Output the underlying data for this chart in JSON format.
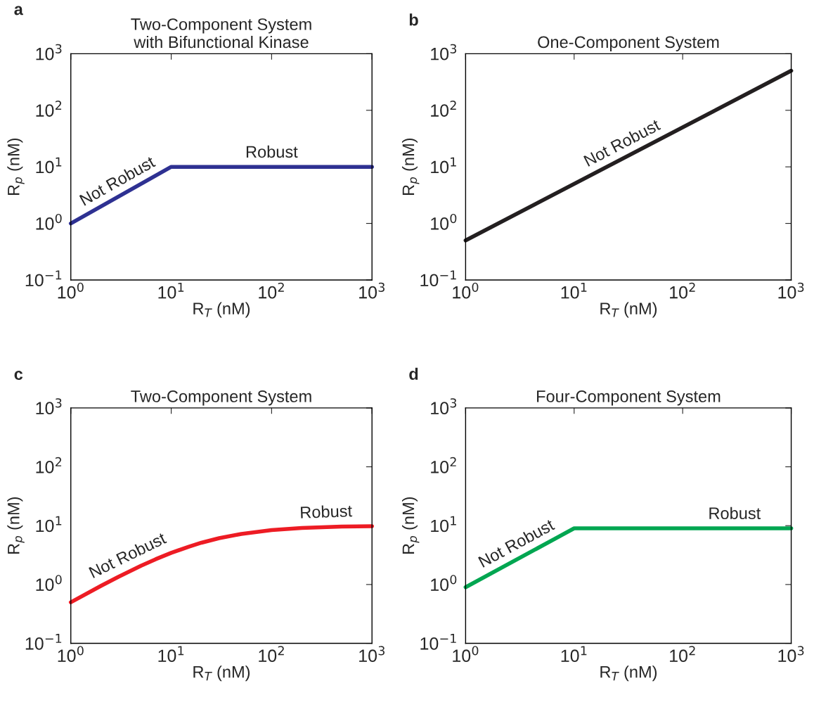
{
  "chart_data": [
    {
      "type": "line",
      "title": "Two-Component System\nwith Bifunctional Kinase",
      "xlabel": "R$_{T}$ (nM)",
      "ylabel": "R$_{p}$ (nM)",
      "log": "xy",
      "grid": false,
      "legend": false,
      "xlim": [
        1,
        1000
      ],
      "ylim": [
        0.1,
        1000
      ],
      "xticks": [
        {
          "value": 1,
          "label": "10$^{0}$"
        },
        {
          "value": 10,
          "label": "10$^{1}$"
        },
        {
          "value": 100,
          "label": "10$^{2}$"
        },
        {
          "value": 1000,
          "label": "10$^{3}$"
        }
      ],
      "yticks": [
        {
          "value": 0.1,
          "label": "10$^{−1}$"
        },
        {
          "value": 1,
          "label": "10$^{0}$"
        },
        {
          "value": 10,
          "label": "10$^{1}$"
        },
        {
          "value": 100,
          "label": "10$^{2}$"
        },
        {
          "value": 1000,
          "label": "10$^{3}$"
        }
      ],
      "series": [
        {
          "color": "#2e3192",
          "x": [
            1,
            10,
            1000
          ],
          "values": [
            1,
            10,
            10
          ]
        }
      ],
      "annotations": [
        "a",
        {
          "text": "Not Robust",
          "x": 3.2,
          "y": 3.2
        },
        {
          "text": "Robust",
          "x": 100,
          "y": 10
        }
      ]
    },
    {
      "type": "line",
      "title": "One-Component System",
      "xlabel": "R$_{T}$ (nM)",
      "ylabel": "R$_{p}$ (nM)",
      "log": "xy",
      "grid": false,
      "legend": false,
      "xlim": [
        1,
        1000
      ],
      "ylim": [
        0.1,
        1000
      ],
      "xticks": [
        {
          "value": 1,
          "label": "10$^{0}$"
        },
        {
          "value": 10,
          "label": "10$^{1}$"
        },
        {
          "value": 100,
          "label": "10$^{2}$"
        },
        {
          "value": 1000,
          "label": "10$^{3}$"
        }
      ],
      "yticks": [
        {
          "value": 0.1,
          "label": "10$^{−1}$"
        },
        {
          "value": 1,
          "label": "10$^{0}$"
        },
        {
          "value": 10,
          "label": "10$^{1}$"
        },
        {
          "value": 100,
          "label": "10$^{2}$"
        },
        {
          "value": 1000,
          "label": "10$^{3}$"
        }
      ],
      "series": [
        {
          "color": "#231f20",
          "x": [
            1,
            1000
          ],
          "values": [
            0.5,
            500
          ]
        }
      ],
      "annotations": [
        "b",
        {
          "text": "Not Robust",
          "x": 30,
          "y": 15
        }
      ]
    },
    {
      "type": "line",
      "title": "Two-Component System",
      "xlabel": "R$_{T}$ (nM)",
      "ylabel": "R$_{p}$ (nM)",
      "log": "xy",
      "grid": false,
      "legend": false,
      "xlim": [
        1,
        1000
      ],
      "ylim": [
        0.1,
        1000
      ],
      "xticks": [
        {
          "value": 1,
          "label": "10$^{0}$"
        },
        {
          "value": 10,
          "label": "10$^{1}$"
        },
        {
          "value": 100,
          "label": "10$^{2}$"
        },
        {
          "value": 1000,
          "label": "10$^{3}$"
        }
      ],
      "yticks": [
        {
          "value": 0.1,
          "label": "10$^{−1}$"
        },
        {
          "value": 1,
          "label": "10$^{0}$"
        },
        {
          "value": 10,
          "label": "10$^{1}$"
        },
        {
          "value": 100,
          "label": "10$^{2}$"
        },
        {
          "value": 1000,
          "label": "10$^{3}$"
        }
      ],
      "series": [
        {
          "color": "#ed1c24",
          "x": [
            1,
            2,
            3,
            5,
            7,
            10,
            15,
            20,
            30,
            50,
            100,
            200,
            500,
            1000
          ],
          "values": [
            0.5,
            0.95,
            1.36,
            2.08,
            2.69,
            3.45,
            4.4,
            5.13,
            6.12,
            7.25,
            8.4,
            9.13,
            9.63,
            9.81
          ]
        }
      ],
      "annotations": [
        "c",
        {
          "text": "Not Robust",
          "x": 4,
          "y": 1.8
        },
        {
          "text": "Robust",
          "x": 350,
          "y": 9.6
        }
      ]
    },
    {
      "type": "line",
      "title": "Four-Component System",
      "xlabel": "R$_{T}$ (nM)",
      "ylabel": "R$_{p}$ (nM)",
      "log": "xy",
      "grid": false,
      "legend": false,
      "xlim": [
        1,
        1000
      ],
      "ylim": [
        0.1,
        1000
      ],
      "xticks": [
        {
          "value": 1,
          "label": "10$^{0}$"
        },
        {
          "value": 10,
          "label": "10$^{1}$"
        },
        {
          "value": 100,
          "label": "10$^{2}$"
        },
        {
          "value": 1000,
          "label": "10$^{3}$"
        }
      ],
      "yticks": [
        {
          "value": 0.1,
          "label": "10$^{−1}$"
        },
        {
          "value": 1,
          "label": "10$^{0}$"
        },
        {
          "value": 10,
          "label": "10$^{1}$"
        },
        {
          "value": 100,
          "label": "10$^{2}$"
        },
        {
          "value": 1000,
          "label": "10$^{3}$"
        }
      ],
      "series": [
        {
          "color": "#00a651",
          "x": [
            1,
            10,
            1000
          ],
          "values": [
            0.9,
            9,
            9
          ]
        }
      ],
      "annotations": [
        "d",
        {
          "text": "Not Robust",
          "x": 3.2,
          "y": 2.9
        },
        {
          "text": "Robust",
          "x": 300,
          "y": 9
        }
      ]
    }
  ]
}
